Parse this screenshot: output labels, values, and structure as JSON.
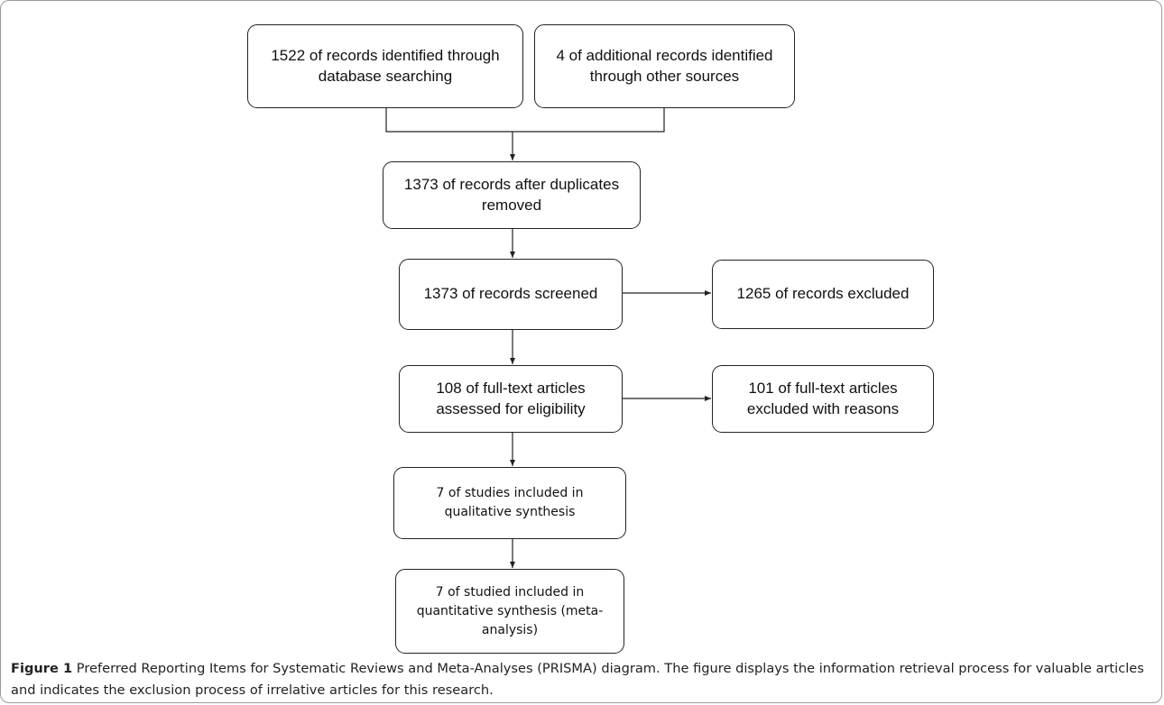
{
  "diagram": {
    "boxes": {
      "identified_db": "1522 of records identified through database searching",
      "identified_other": "4 of additional records identified through other sources",
      "after_duplicates": "1373 of records after duplicates removed",
      "screened": "1373 of records screened",
      "excluded_screen": "1265 of records excluded",
      "fulltext_assessed": "108 of full-text articles assessed for  eligibility",
      "fulltext_excluded": "101 of full-text articles excluded with reasons",
      "qualitative": "7 of studies included in qualitative synthesis",
      "quantitative": "7 of studied included in quantitative synthesis (meta-analysis)"
    }
  },
  "caption": {
    "label": "Figure 1",
    "text": " Preferred Reporting Items for Systematic Reviews and Meta-Analyses (PRISMA) diagram. The figure displays the information retrieval process for valuable articles and indicates the exclusion process of irrelative articles for this research."
  }
}
